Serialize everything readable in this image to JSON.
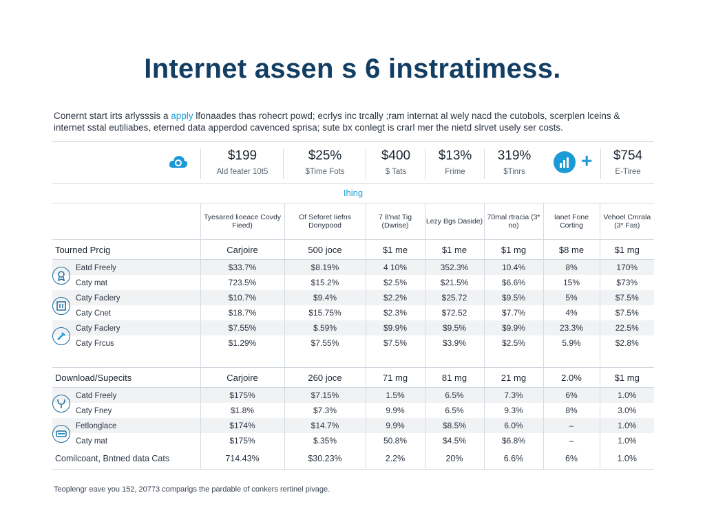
{
  "title": "Internet assen s 6 instratimess.",
  "intro": {
    "line1_a": "Conernt start irts arlysssis a ",
    "line1_accent": "apply",
    "line1_b": " lfonaades thas rohecrt powd; ecrlys inc trcally ;ram internat al wely nacd the cutobols, scerplen lceins &",
    "line2": "internet sstal eutiliabes, eterned data apperdod cavenced sprisa; sute bx conlegt is crarl mer the nietd slrvet usely ser costs."
  },
  "summary": [
    {
      "value": "$199",
      "label": "Ald feater 10t5"
    },
    {
      "value": "$25%",
      "label": "$Time Fots"
    },
    {
      "value": "$400",
      "label": "$ Tats"
    },
    {
      "value": "$13%",
      "label": "Frime"
    },
    {
      "value": "319%",
      "label": "$Tinrs"
    },
    {
      "value": "$754",
      "label": "E-Tiree"
    }
  ],
  "subtitle": "Ihing",
  "headers": [
    "",
    "Tyesared lioeace Covdy Fieed)",
    "Of Seforet Iiefns Donypood",
    "7 8'nat Tig (Dwrise)",
    "Lezy Bgs Daside)",
    "70mal rtracia (3* no)",
    "Ianet Fone Corting",
    "Vehoel Cmrala (3* Fas)"
  ],
  "sections": [
    {
      "name": "Tourned Prcig",
      "cells": [
        "Carjoire",
        "500 joce",
        "$1 me",
        "$1 me",
        "$1 mg",
        "$8 me",
        "$1 mg"
      ],
      "groups": [
        {
          "icon": "medal-icon",
          "rows": [
            {
              "name": "Eatd Freely",
              "cells": [
                "$33.7%",
                "$8.19%",
                "4 10%",
                "352.3%",
                "10.4%",
                "8%",
                "170%"
              ]
            },
            {
              "name": "Caty mat",
              "cells": [
                "723.5%",
                "$15.2%",
                "$2.5%",
                "$21.5%",
                "$6.6%",
                "15%",
                "$73%"
              ]
            }
          ]
        },
        {
          "icon": "barcode-icon",
          "rows": [
            {
              "name": "Caty Faclery",
              "cells": [
                "$10.7%",
                "$9.4%",
                "$2.2%",
                "$25.72",
                "$9.5%",
                "5%",
                "$7.5%"
              ]
            },
            {
              "name": "Caty Cnet",
              "cells": [
                "$18.7%",
                "$15.75%",
                "$2.3%",
                "$72.52",
                "$7.7%",
                "4%",
                "$7.5%"
              ]
            }
          ]
        },
        {
          "icon": "wrench-icon",
          "rows": [
            {
              "name": "Caty Faclery",
              "cells": [
                "$7.55%",
                "$.59%",
                "$9.9%",
                "$9.5%",
                "$9.9%",
                "23.3%",
                "22.5%"
              ]
            },
            {
              "name": "Caty Frcus",
              "cells": [
                "$1.29%",
                "$7.55%",
                "$7.5%",
                "$3.9%",
                "$2.5%",
                "5.9%",
                "$2.8%"
              ]
            }
          ]
        }
      ]
    },
    {
      "name": "Download/Supecits",
      "cells": [
        "Carjoire",
        "260 joce",
        "71 mg",
        "81 mg",
        "21 mg",
        "2.0%",
        "$1 mg"
      ],
      "groups": [
        {
          "icon": "tuning-fork-icon",
          "rows": [
            {
              "name": "Catd Freely",
              "cells": [
                "$175%",
                "$7.15%",
                "1.5%",
                "6.5%",
                "7.3%",
                "6%",
                "1.0%"
              ]
            },
            {
              "name": "Caty Fney",
              "cells": [
                "$1.8%",
                "$7.3%",
                "9.9%",
                "6.5%",
                "9.3%",
                "8%",
                "3.0%"
              ]
            }
          ]
        },
        {
          "icon": "card-icon",
          "rows": [
            {
              "name": "Fetlonglace",
              "cells": [
                "$174%",
                "$14.7%",
                "9.9%",
                "$8.5%",
                "6.0%",
                "–",
                "1.0%"
              ]
            },
            {
              "name": "Caty mat",
              "cells": [
                "$175%",
                "$.35%",
                "50.8%",
                "$4.5%",
                "$6.8%",
                "–",
                "1.0%"
              ]
            }
          ]
        }
      ]
    }
  ],
  "total": {
    "name": "Comilcoant, Bntned data Cats",
    "cells": [
      "714.43%",
      "$30.23%",
      "2.2%",
      "20%",
      "6.6%",
      "6%",
      "1.0%"
    ]
  },
  "footnote": "Teoplengr eave you 152, 20773 comparigs the pardable of conkers rertinel pivage.",
  "colors": {
    "accent": "#1f9fd6",
    "title": "#123e63",
    "shade": "#f1f2f4"
  }
}
